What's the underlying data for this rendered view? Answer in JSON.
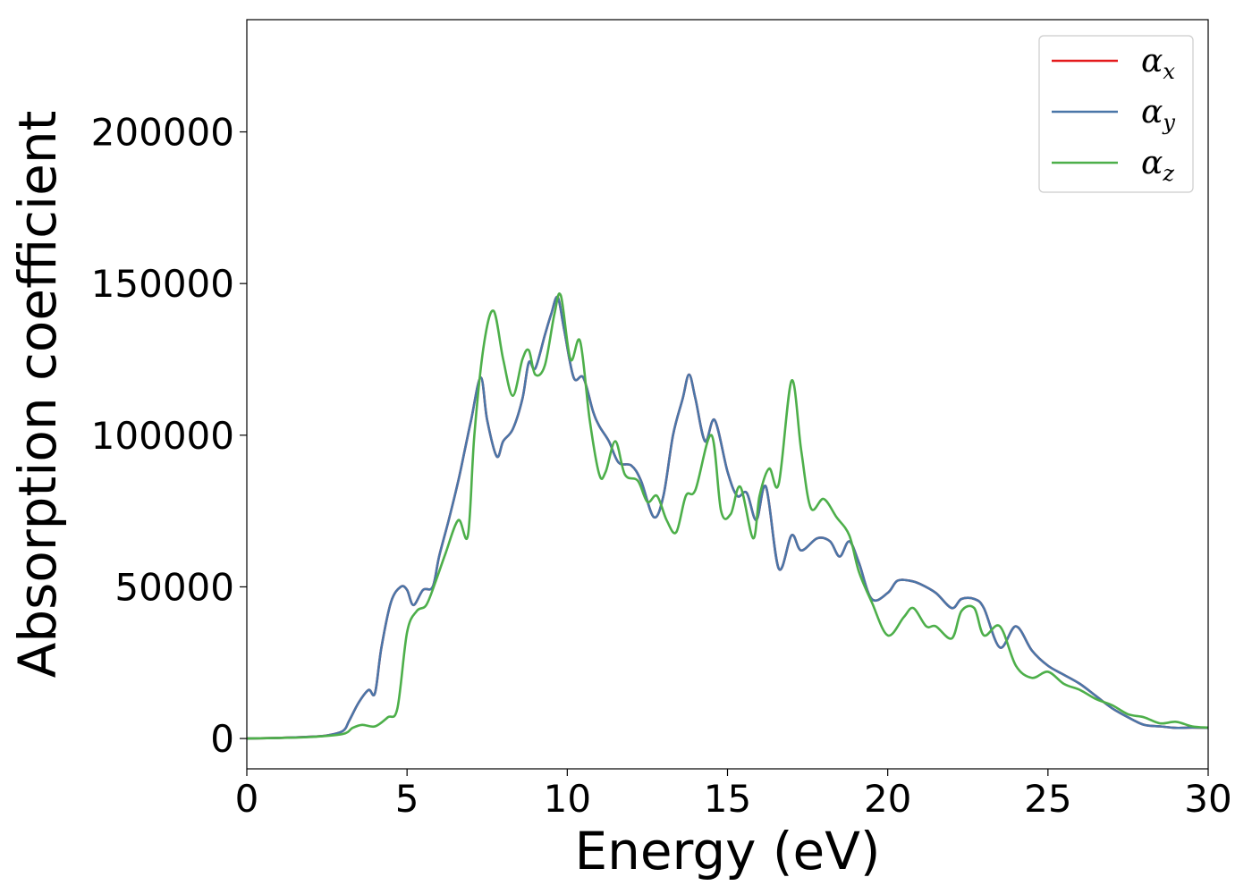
{
  "chart_data": {
    "type": "line",
    "title": "",
    "xlabel": "Energy (eV)",
    "ylabel": "Absorption coefficient",
    "xlim": [
      0,
      30
    ],
    "ylim": [
      -10000,
      237000
    ],
    "xticks": [
      0,
      5,
      10,
      15,
      20,
      25,
      30
    ],
    "yticks": [
      0,
      50000,
      100000,
      150000,
      200000
    ],
    "grid": false,
    "legend_position": "top-right",
    "series": [
      {
        "name": "α",
        "subscript": "x",
        "color": "#e41a1c",
        "x": [
          0,
          1,
          2,
          2.5,
          3,
          3.2,
          3.5,
          3.8,
          4.0,
          4.2,
          4.5,
          4.8,
          5.0,
          5.2,
          5.5,
          5.8,
          6.0,
          6.3,
          6.6,
          6.8,
          7.0,
          7.3,
          7.5,
          7.8,
          8.0,
          8.3,
          8.6,
          8.8,
          9.0,
          9.3,
          9.5,
          9.7,
          9.9,
          10.2,
          10.5,
          10.8,
          11.0,
          11.3,
          11.6,
          12.0,
          12.3,
          12.7,
          13.0,
          13.3,
          13.6,
          13.8,
          14.0,
          14.3,
          14.6,
          15.0,
          15.3,
          15.6,
          15.9,
          16.2,
          16.6,
          17.0,
          17.3,
          17.8,
          18.2,
          18.5,
          18.8,
          19.1,
          19.5,
          20.0,
          20.3,
          20.7,
          21.0,
          21.5,
          22.0,
          22.3,
          22.7,
          23.0,
          23.5,
          24.0,
          24.5,
          25.0,
          25.5,
          26.0,
          26.5,
          27.0,
          27.5,
          28.0,
          28.5,
          29.0,
          29.5,
          30.0
        ],
        "values": [
          0,
          200,
          600,
          1000,
          2500,
          6000,
          12000,
          16000,
          15000,
          30000,
          45000,
          50000,
          49000,
          44000,
          49000,
          50000,
          60000,
          72000,
          85000,
          95000,
          105000,
          119000,
          105000,
          93000,
          98000,
          102000,
          112000,
          124000,
          122000,
          133000,
          140000,
          145500,
          135000,
          119000,
          119000,
          108000,
          103000,
          98000,
          91000,
          90000,
          85000,
          73000,
          80000,
          100000,
          112000,
          120000,
          112000,
          98000,
          105000,
          88000,
          80000,
          81000,
          72000,
          83000,
          56000,
          67000,
          62000,
          66000,
          65000,
          60000,
          65000,
          58000,
          46000,
          48000,
          52000,
          52000,
          51000,
          48000,
          43000,
          46000,
          46000,
          43000,
          30000,
          37000,
          29000,
          24000,
          21000,
          18000,
          14000,
          10000,
          7000,
          4500,
          4000,
          3500,
          3600,
          3500
        ]
      },
      {
        "name": "α",
        "subscript": "y",
        "color": "#4a76a8",
        "x": [
          0,
          1,
          2,
          2.5,
          3,
          3.2,
          3.5,
          3.8,
          4.0,
          4.2,
          4.5,
          4.8,
          5.0,
          5.2,
          5.5,
          5.8,
          6.0,
          6.3,
          6.6,
          6.8,
          7.0,
          7.3,
          7.5,
          7.8,
          8.0,
          8.3,
          8.6,
          8.8,
          9.0,
          9.3,
          9.5,
          9.7,
          9.9,
          10.2,
          10.5,
          10.8,
          11.0,
          11.3,
          11.6,
          12.0,
          12.3,
          12.7,
          13.0,
          13.3,
          13.6,
          13.8,
          14.0,
          14.3,
          14.6,
          15.0,
          15.3,
          15.6,
          15.9,
          16.2,
          16.6,
          17.0,
          17.3,
          17.8,
          18.2,
          18.5,
          18.8,
          19.1,
          19.5,
          20.0,
          20.3,
          20.7,
          21.0,
          21.5,
          22.0,
          22.3,
          22.7,
          23.0,
          23.5,
          24.0,
          24.5,
          25.0,
          25.5,
          26.0,
          26.5,
          27.0,
          27.5,
          28.0,
          28.5,
          29.0,
          29.5,
          30.0
        ],
        "values": [
          0,
          200,
          600,
          1000,
          2500,
          6000,
          12000,
          16000,
          15000,
          30000,
          45000,
          50000,
          49000,
          44000,
          49000,
          50000,
          60000,
          72000,
          85000,
          95000,
          105000,
          119000,
          105000,
          93000,
          98000,
          102000,
          112000,
          124000,
          122000,
          133000,
          140000,
          145500,
          135000,
          119000,
          119000,
          108000,
          103000,
          98000,
          91000,
          90000,
          85000,
          73000,
          80000,
          100000,
          112000,
          120000,
          112000,
          98000,
          105000,
          88000,
          80000,
          81000,
          72000,
          83000,
          56000,
          67000,
          62000,
          66000,
          65000,
          60000,
          65000,
          58000,
          46000,
          48000,
          52000,
          52000,
          51000,
          48000,
          43000,
          46000,
          46000,
          43000,
          30000,
          37000,
          29000,
          24000,
          21000,
          18000,
          14000,
          10000,
          7000,
          4500,
          4000,
          3500,
          3600,
          3500
        ]
      },
      {
        "name": "α",
        "subscript": "z",
        "color": "#4daf4a",
        "x": [
          0,
          1,
          2,
          3,
          3.3,
          3.6,
          4.0,
          4.4,
          4.7,
          5.0,
          5.3,
          5.6,
          5.9,
          6.2,
          6.6,
          6.9,
          7.1,
          7.4,
          7.7,
          8.0,
          8.3,
          8.6,
          8.8,
          9.0,
          9.3,
          9.6,
          9.8,
          10.1,
          10.4,
          10.7,
          11.0,
          11.2,
          11.5,
          11.8,
          12.2,
          12.5,
          12.8,
          13.1,
          13.4,
          13.7,
          14.0,
          14.5,
          14.8,
          15.1,
          15.4,
          15.8,
          16.0,
          16.3,
          16.6,
          17.0,
          17.3,
          17.6,
          18.0,
          18.4,
          18.8,
          19.1,
          19.5,
          20.0,
          20.5,
          20.8,
          21.2,
          21.5,
          22.0,
          22.3,
          22.7,
          23.0,
          23.5,
          24.0,
          24.5,
          25.0,
          25.5,
          26.0,
          26.5,
          27.0,
          27.5,
          28.0,
          28.5,
          29.0,
          29.5,
          30.0
        ],
        "values": [
          0,
          200,
          500,
          1500,
          3500,
          4500,
          4000,
          7000,
          10000,
          35000,
          42000,
          44000,
          52000,
          61000,
          72000,
          67000,
          100000,
          130000,
          141000,
          125000,
          113000,
          125000,
          128000,
          120000,
          123000,
          140000,
          146000,
          125000,
          131000,
          105000,
          87000,
          88000,
          98000,
          87000,
          85000,
          78000,
          80000,
          72000,
          68000,
          80000,
          82000,
          100000,
          75000,
          74000,
          83000,
          66000,
          80000,
          89000,
          84000,
          118000,
          95000,
          76000,
          79000,
          73000,
          67000,
          55000,
          45000,
          34000,
          40000,
          43000,
          37000,
          37000,
          33000,
          42000,
          43000,
          34000,
          37000,
          24000,
          20000,
          22000,
          18000,
          16000,
          13000,
          11000,
          8000,
          7000,
          5000,
          5500,
          4000,
          3600
        ]
      }
    ]
  }
}
